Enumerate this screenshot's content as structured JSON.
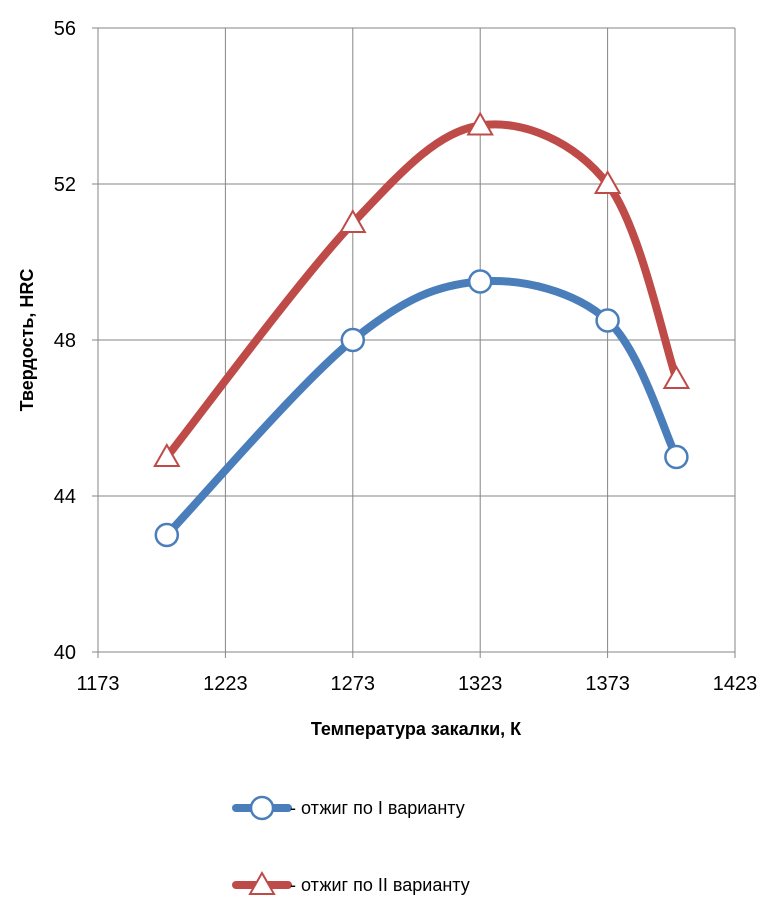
{
  "chart_data": {
    "type": "line",
    "xlabel": "Температура закалки, К",
    "ylabel": "Твердость, HRC",
    "xlim": [
      1173,
      1423
    ],
    "ylim": [
      40,
      56
    ],
    "x_ticks": [
      "1173",
      "1223",
      "1273",
      "1323",
      "1373",
      "1423"
    ],
    "y_ticks": [
      "40",
      "44",
      "48",
      "52",
      "56"
    ],
    "grid": true,
    "legend_position": "bottom",
    "series": [
      {
        "name": "- отжиг по I варианту",
        "color": "#4a7ebb",
        "marker": "circle",
        "x": [
          1200,
          1273,
          1323,
          1373,
          1400
        ],
        "y": [
          43,
          48,
          49.5,
          48.5,
          45
        ]
      },
      {
        "name": "- отжиг по II варианту",
        "color": "#be4b48",
        "marker": "triangle",
        "x": [
          1200,
          1273,
          1323,
          1373,
          1400
        ],
        "y": [
          45,
          51,
          53.5,
          52,
          47
        ]
      }
    ]
  }
}
